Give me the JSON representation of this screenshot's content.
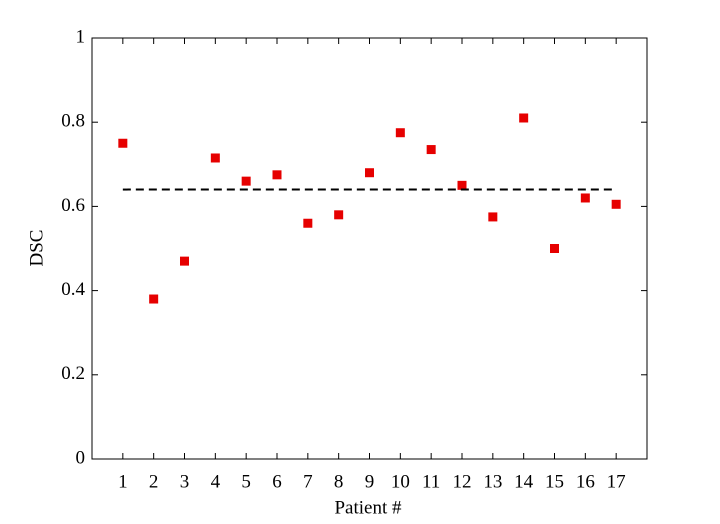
{
  "chart_data": {
    "type": "scatter",
    "xlabel": "Patient #",
    "ylabel": "DSC",
    "xlim": [
      0,
      18
    ],
    "ylim": [
      0,
      1
    ],
    "xticks": [
      1,
      2,
      3,
      4,
      5,
      6,
      7,
      8,
      9,
      10,
      11,
      12,
      13,
      14,
      15,
      16,
      17
    ],
    "yticks": [
      0,
      0.2,
      0.4,
      0.6,
      0.8,
      1
    ],
    "series": [
      {
        "color": "#e60000",
        "marker": "square",
        "x": [
          1,
          2,
          3,
          4,
          5,
          6,
          7,
          8,
          9,
          10,
          11,
          12,
          13,
          14,
          15,
          16,
          17
        ],
        "values": [
          0.75,
          0.38,
          0.47,
          0.715,
          0.66,
          0.675,
          0.56,
          0.58,
          0.68,
          0.775,
          0.735,
          0.65,
          0.575,
          0.81,
          0.5,
          0.62,
          0.605
        ]
      },
      {
        "color": "#000000",
        "line": "dashed",
        "x": [
          1,
          17
        ],
        "values": [
          0.64,
          0.64
        ]
      }
    ]
  }
}
